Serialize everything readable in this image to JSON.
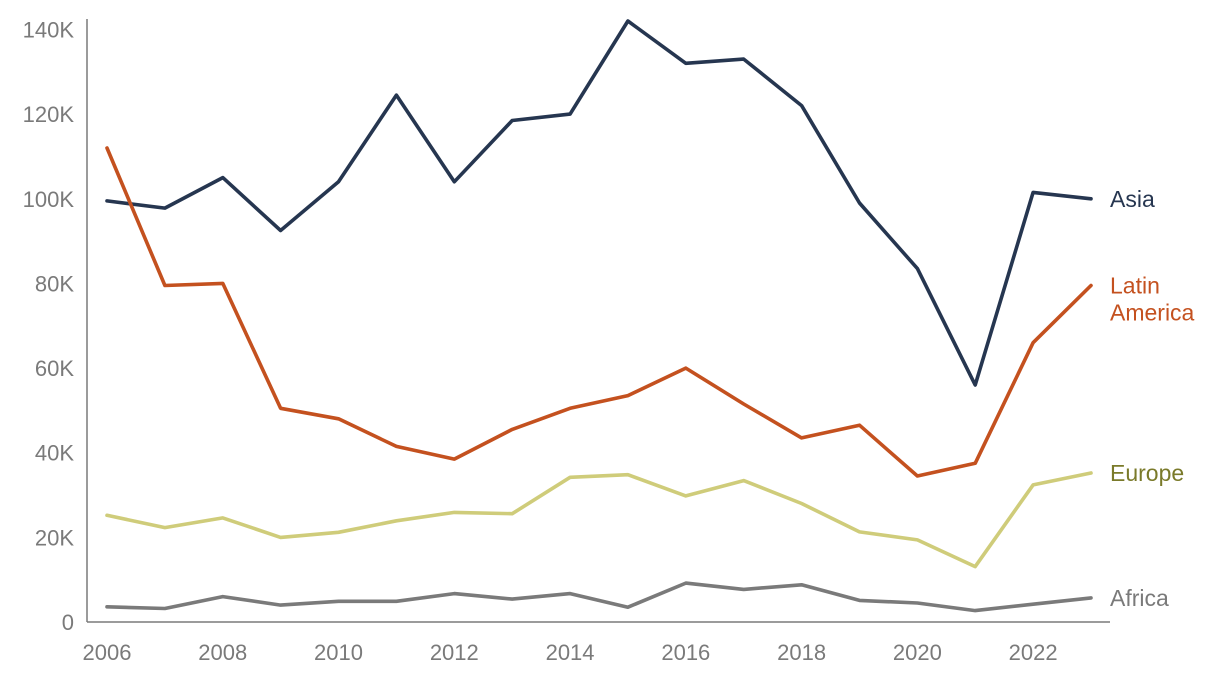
{
  "chart_data": {
    "type": "line",
    "title": "",
    "xlabel": "",
    "ylabel": "",
    "x": [
      2006,
      2007,
      2008,
      2009,
      2010,
      2011,
      2012,
      2013,
      2014,
      2015,
      2016,
      2017,
      2018,
      2019,
      2020,
      2021,
      2022,
      2023
    ],
    "xticks": [
      2006,
      2008,
      2010,
      2012,
      2014,
      2016,
      2018,
      2020,
      2022
    ],
    "xtick_labels": [
      "2006",
      "2008",
      "2010",
      "2012",
      "2014",
      "2016",
      "2018",
      "2020",
      "2022"
    ],
    "yticks": [
      0,
      20000,
      40000,
      60000,
      80000,
      100000,
      120000,
      140000
    ],
    "ytick_labels": [
      "0",
      "20K",
      "40K",
      "60K",
      "80K",
      "100K",
      "120K",
      "140K"
    ],
    "ylim": [
      0,
      142000
    ],
    "xlim": [
      2006,
      2023
    ],
    "grid": false,
    "legend": "direct labels at line ends",
    "series": [
      {
        "name": "Asia",
        "label_lines": [
          "Asia"
        ],
        "color": "#263650",
        "label_color": "#263650",
        "values": [
          99500,
          97800,
          105000,
          92500,
          104000,
          124500,
          104000,
          118500,
          120000,
          142000,
          132000,
          133000,
          122000,
          99000,
          83500,
          56000,
          101500,
          100000
        ]
      },
      {
        "name": "Latin America",
        "label_lines": [
          "Latin",
          "America"
        ],
        "color": "#c4511f",
        "label_color": "#c4511f",
        "values": [
          112000,
          79500,
          80000,
          50500,
          48000,
          41500,
          38500,
          45500,
          50500,
          53500,
          60000,
          51500,
          43500,
          46500,
          34500,
          37500,
          66000,
          79500
        ]
      },
      {
        "name": "Europe",
        "label_lines": [
          "Europe"
        ],
        "color": "#cfcc7a",
        "label_color": "#7a7a2a",
        "values": [
          25200,
          22300,
          24600,
          20000,
          21200,
          23900,
          25900,
          25600,
          34200,
          34800,
          29800,
          33400,
          28000,
          21300,
          19400,
          13100,
          32400,
          35200
        ]
      },
      {
        "name": "Africa",
        "label_lines": [
          "Africa"
        ],
        "color": "#7a7a7a",
        "label_color": "#7a7a7a",
        "values": [
          3600,
          3200,
          6000,
          4000,
          4900,
          4900,
          6700,
          5400,
          6700,
          3500,
          9200,
          7700,
          8800,
          5100,
          4500,
          2700,
          4200,
          5700
        ]
      }
    ]
  }
}
